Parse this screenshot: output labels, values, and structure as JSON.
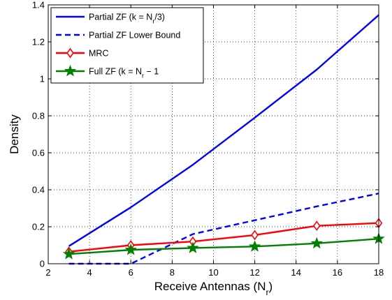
{
  "chart_data": {
    "type": "line",
    "title": "",
    "xlabel": {
      "main": "Receive Antennas (N",
      "sub": "r",
      "tail": ")"
    },
    "ylabel": "Density",
    "xlim": [
      2,
      18
    ],
    "ylim": [
      0,
      1.4
    ],
    "xticks": [
      2,
      4,
      6,
      8,
      10,
      12,
      14,
      16,
      18
    ],
    "yticks": [
      0,
      0.2,
      0.4,
      0.6,
      0.8,
      1,
      1.2,
      1.4
    ],
    "xtick_labels": [
      "2",
      "4",
      "6",
      "8",
      "10",
      "12",
      "14",
      "16",
      "18"
    ],
    "ytick_labels": [
      "0",
      "0.2",
      "0.4",
      "0.6",
      "0.8",
      "1",
      "1.2",
      "1.4"
    ],
    "grid": true,
    "legend_position": "top-left",
    "series": [
      {
        "id": "partial-zf",
        "legend": {
          "main": "Partial ZF (k = N",
          "sub": "r",
          "tail": "/3)"
        },
        "color": "#0000ff",
        "dash": "solid",
        "marker": "none",
        "x": [
          3,
          6,
          9,
          12,
          15,
          18
        ],
        "y": [
          0.095,
          0.305,
          0.535,
          0.79,
          1.05,
          1.345
        ]
      },
      {
        "id": "partial-zf-lower-bound",
        "legend": {
          "main": "Partial ZF Lower Bound",
          "sub": "",
          "tail": ""
        },
        "color": "#0000ff",
        "dash": "dashed",
        "marker": "none",
        "x": [
          3,
          6,
          9,
          12,
          15,
          18
        ],
        "y": [
          0.0,
          0.0,
          0.16,
          0.235,
          0.31,
          0.38
        ]
      },
      {
        "id": "mrc",
        "legend": {
          "main": "MRC",
          "sub": "",
          "tail": ""
        },
        "color": "#ff0000",
        "dash": "solid",
        "marker": "diamond",
        "x": [
          3,
          6,
          9,
          12,
          15,
          18
        ],
        "y": [
          0.065,
          0.1,
          0.12,
          0.155,
          0.205,
          0.22
        ]
      },
      {
        "id": "full-zf",
        "legend": {
          "main": "Full ZF (k = N",
          "sub": "r",
          "tail": " − 1"
        },
        "color": "#008000",
        "dash": "solid",
        "marker": "star",
        "x": [
          3,
          6,
          9,
          12,
          15,
          18
        ],
        "y": [
          0.052,
          0.075,
          0.085,
          0.093,
          0.11,
          0.135
        ]
      }
    ]
  }
}
